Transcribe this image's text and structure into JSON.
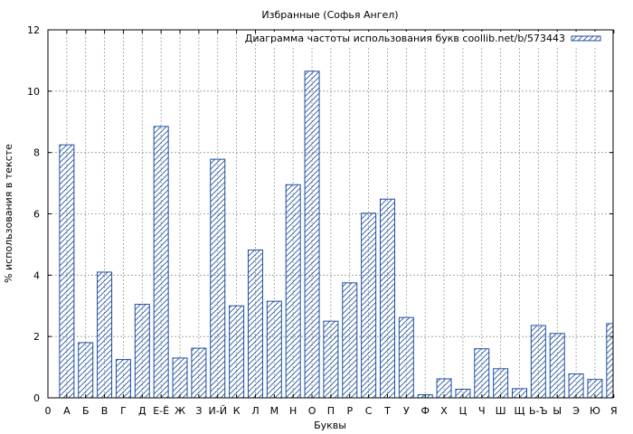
{
  "chart_data": {
    "type": "bar",
    "title": "Избранные (Софья Ангел)",
    "xlabel": "Буквы",
    "ylabel": "% использования в тексте",
    "ylim": [
      0,
      12
    ],
    "yticks": [
      0,
      2,
      4,
      6,
      8,
      10,
      12
    ],
    "grid": true,
    "legend_position": "top-right",
    "bar_color": "#1f4fa0",
    "x_tick_labels": [
      "0",
      "А",
      "Б",
      "В",
      "Г",
      "Д",
      "Е-Ё",
      "Ж",
      "З",
      "И-Й",
      "К",
      "Л",
      "М",
      "Н",
      "О",
      "П",
      "Р",
      "С",
      "Т",
      "У",
      "Ф",
      "Х",
      "Ц",
      "Ч",
      "Ш",
      "Щ",
      "Ь-Ъ",
      "Ы",
      "Э",
      "Ю",
      "Я"
    ],
    "series": [
      {
        "name": "Диаграмма частоты использования букв coollib.net/b/573443",
        "categories": [
          "А",
          "Б",
          "В",
          "Г",
          "Д",
          "Е-Ё",
          "Ж",
          "З",
          "И-Й",
          "К",
          "Л",
          "М",
          "Н",
          "О",
          "П",
          "Р",
          "С",
          "Т",
          "У",
          "Ф",
          "Х",
          "Ц",
          "Ч",
          "Ш",
          "Щ",
          "Ь-Ъ",
          "Ы",
          "Э",
          "Ю",
          "Я"
        ],
        "values": [
          8.25,
          1.8,
          4.1,
          1.25,
          3.05,
          8.85,
          1.3,
          1.62,
          7.78,
          3.0,
          4.82,
          3.15,
          6.95,
          10.65,
          2.5,
          3.75,
          6.02,
          6.48,
          2.62,
          0.1,
          0.62,
          0.28,
          1.6,
          0.95,
          0.3,
          2.36,
          2.1,
          0.78,
          0.6,
          2.42
        ]
      }
    ]
  }
}
